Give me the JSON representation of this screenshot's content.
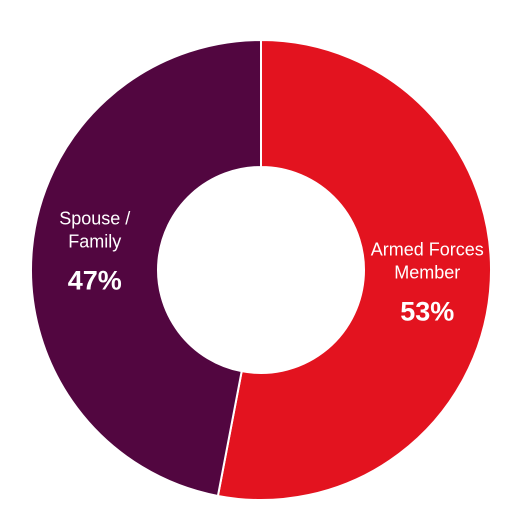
{
  "chart_data": {
    "type": "pie",
    "style": "donut",
    "slices": [
      {
        "label_lines": [
          "Armed Forces",
          "Member"
        ],
        "value": 53,
        "value_label": "53%",
        "color": "#e3131f"
      },
      {
        "label_lines": [
          "Spouse /",
          "Family"
        ],
        "value": 47,
        "value_label": "47%",
        "color": "#520640"
      }
    ],
    "legend": "none",
    "start": "top",
    "direction": "clockwise"
  }
}
